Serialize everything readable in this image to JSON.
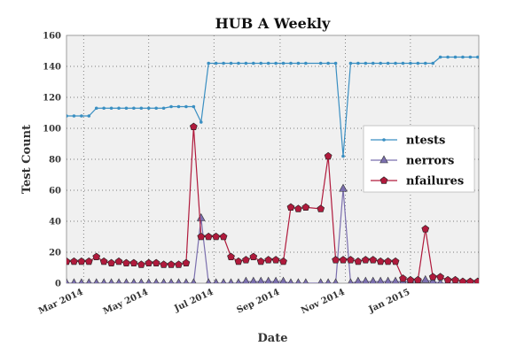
{
  "chart_data": {
    "type": "line",
    "title": "HUB A Weekly",
    "xlabel": "Date",
    "ylabel": "Test Count",
    "ylim": [
      0,
      160
    ],
    "xlim": [
      "2014-02-13",
      "2015-03-06"
    ],
    "grid": true,
    "legend_position": "right",
    "y_ticks": [
      0,
      20,
      40,
      60,
      80,
      100,
      120,
      140,
      160
    ],
    "x_ticks": [
      {
        "date": "2014-03-01",
        "label": "Mar 2014"
      },
      {
        "date": "2014-05-01",
        "label": "May 2014"
      },
      {
        "date": "2014-07-01",
        "label": "Jul 2014"
      },
      {
        "date": "2014-09-01",
        "label": "Sep 2014"
      },
      {
        "date": "2014-11-01",
        "label": "Nov 2014"
      },
      {
        "date": "2015-01-01",
        "label": "Jan 2015"
      }
    ],
    "series": [
      {
        "name": "ntests",
        "color": "#3a8fc2",
        "marker": "dot",
        "x": [
          "2014-02-13",
          "2014-02-20",
          "2014-02-27",
          "2014-03-06",
          "2014-03-13",
          "2014-03-20",
          "2014-03-27",
          "2014-04-03",
          "2014-04-10",
          "2014-04-17",
          "2014-04-24",
          "2014-05-01",
          "2014-05-08",
          "2014-05-15",
          "2014-05-22",
          "2014-05-29",
          "2014-06-05",
          "2014-06-12",
          "2014-06-19",
          "2014-06-26",
          "2014-07-03",
          "2014-07-10",
          "2014-07-17",
          "2014-07-24",
          "2014-07-31",
          "2014-08-07",
          "2014-08-14",
          "2014-08-21",
          "2014-08-28",
          "2014-09-04",
          "2014-09-11",
          "2014-09-18",
          "2014-09-25",
          "2014-10-09",
          "2014-10-16",
          "2014-10-23",
          "2014-10-30",
          "2014-11-06",
          "2014-11-13",
          "2014-11-20",
          "2014-11-27",
          "2014-12-04",
          "2014-12-11",
          "2014-12-18",
          "2014-12-25",
          "2015-01-01",
          "2015-01-08",
          "2015-01-15",
          "2015-01-22",
          "2015-01-29",
          "2015-02-05",
          "2015-02-12",
          "2015-02-19",
          "2015-02-26",
          "2015-03-05"
        ],
        "values": [
          108,
          108,
          108,
          108,
          113,
          113,
          113,
          113,
          113,
          113,
          113,
          113,
          113,
          113,
          114,
          114,
          114,
          114,
          104,
          142,
          142,
          142,
          142,
          142,
          142,
          142,
          142,
          142,
          142,
          142,
          142,
          142,
          142,
          142,
          142,
          142,
          82,
          142,
          142,
          142,
          142,
          142,
          142,
          142,
          142,
          142,
          142,
          142,
          142,
          146,
          146,
          146,
          146,
          146,
          146
        ]
      },
      {
        "name": "nerrors",
        "color": "#7b6fae",
        "marker": "triangle",
        "x": [
          "2014-02-13",
          "2014-02-20",
          "2014-02-27",
          "2014-03-06",
          "2014-03-13",
          "2014-03-20",
          "2014-03-27",
          "2014-04-03",
          "2014-04-10",
          "2014-04-17",
          "2014-04-24",
          "2014-05-01",
          "2014-05-08",
          "2014-05-15",
          "2014-05-22",
          "2014-05-29",
          "2014-06-05",
          "2014-06-12",
          "2014-06-19",
          "2014-06-26",
          "2014-07-03",
          "2014-07-10",
          "2014-07-17",
          "2014-07-24",
          "2014-07-31",
          "2014-08-07",
          "2014-08-14",
          "2014-08-21",
          "2014-08-28",
          "2014-09-04",
          "2014-09-11",
          "2014-09-18",
          "2014-09-25",
          "2014-10-09",
          "2014-10-16",
          "2014-10-23",
          "2014-10-30",
          "2014-11-06",
          "2014-11-13",
          "2014-11-20",
          "2014-11-27",
          "2014-12-04",
          "2014-12-11",
          "2014-12-18",
          "2014-12-25",
          "2015-01-01",
          "2015-01-08",
          "2015-01-15",
          "2015-01-22",
          "2015-01-29",
          "2015-02-05",
          "2015-02-12",
          "2015-02-19",
          "2015-02-26",
          "2015-03-05"
        ],
        "values": [
          0,
          0,
          0,
          0,
          0,
          0,
          0,
          0,
          0,
          0,
          0,
          0,
          0,
          0,
          0,
          0,
          0,
          0,
          42,
          0,
          0,
          0,
          0,
          0,
          1,
          1,
          1,
          1,
          1,
          1,
          0,
          0,
          0,
          0,
          0,
          0,
          61,
          0,
          1,
          1,
          1,
          1,
          1,
          1,
          1,
          1,
          1,
          2,
          1,
          0,
          0,
          0,
          0,
          0,
          0
        ]
      },
      {
        "name": "nfailures",
        "color": "#b01a3c",
        "marker": "pentagon",
        "x": [
          "2014-02-13",
          "2014-02-20",
          "2014-02-27",
          "2014-03-06",
          "2014-03-13",
          "2014-03-20",
          "2014-03-27",
          "2014-04-03",
          "2014-04-10",
          "2014-04-17",
          "2014-04-24",
          "2014-05-01",
          "2014-05-08",
          "2014-05-15",
          "2014-05-22",
          "2014-05-29",
          "2014-06-05",
          "2014-06-12",
          "2014-06-19",
          "2014-06-26",
          "2014-07-03",
          "2014-07-10",
          "2014-07-17",
          "2014-07-24",
          "2014-07-31",
          "2014-08-07",
          "2014-08-14",
          "2014-08-21",
          "2014-08-28",
          "2014-09-04",
          "2014-09-11",
          "2014-09-18",
          "2014-09-25",
          "2014-10-09",
          "2014-10-16",
          "2014-10-23",
          "2014-10-30",
          "2014-11-06",
          "2014-11-13",
          "2014-11-20",
          "2014-11-27",
          "2014-12-04",
          "2014-12-11",
          "2014-12-18",
          "2014-12-25",
          "2015-01-01",
          "2015-01-08",
          "2015-01-15",
          "2015-01-22",
          "2015-01-29",
          "2015-02-05",
          "2015-02-12",
          "2015-02-19",
          "2015-02-26",
          "2015-03-05"
        ],
        "values": [
          14,
          14,
          14,
          14,
          17,
          14,
          13,
          14,
          13,
          13,
          12,
          13,
          13,
          12,
          12,
          12,
          13,
          101,
          30,
          30,
          30,
          30,
          17,
          14,
          15,
          17,
          14,
          15,
          15,
          14,
          49,
          48,
          49,
          48,
          82,
          15,
          15,
          15,
          14,
          15,
          15,
          14,
          14,
          14,
          3,
          2,
          2,
          35,
          4,
          4,
          2,
          2,
          1,
          1,
          1
        ]
      }
    ]
  }
}
